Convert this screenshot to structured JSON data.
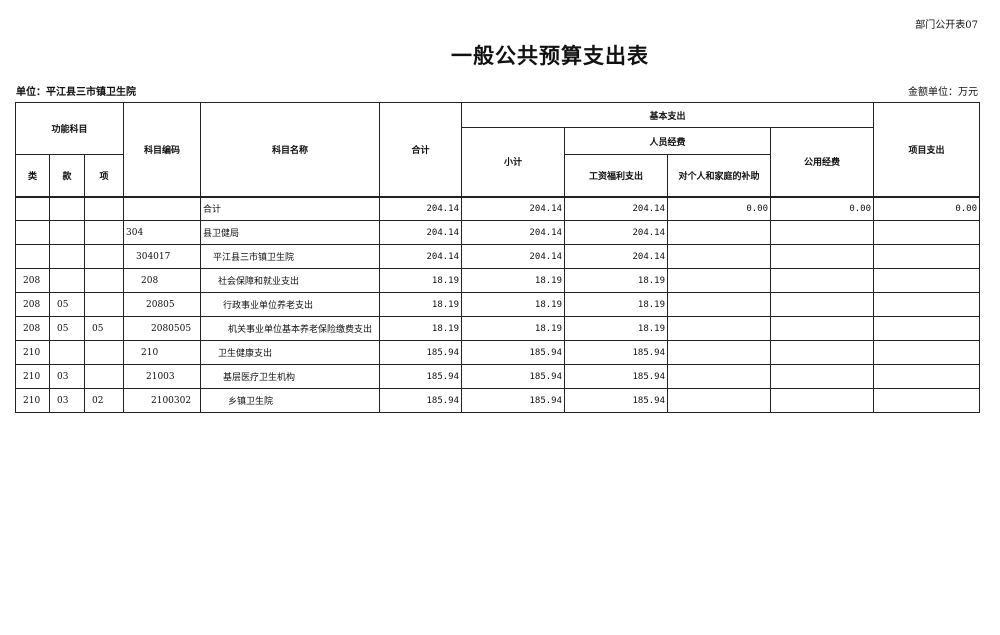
{
  "form_number": "部门公开表07",
  "title": "一般公共预算支出表",
  "unit_label": "单位：平江县三市镇卫生院",
  "money_unit": "金额单位：万元",
  "headers": {
    "func_subject": "功能科目",
    "lei": "类",
    "kuan": "款",
    "xiang": "项",
    "code": "科目编码",
    "name": "科目名称",
    "total": "合计",
    "basic": "基本支出",
    "subtotal": "小计",
    "personnel": "人员经费",
    "salary": "工资福利支出",
    "subsidy": "对个人和家庭的补助",
    "public": "公用经费",
    "project": "项目支出"
  },
  "rows": [
    {
      "lei": "",
      "kuan": "",
      "xiang": "",
      "code": "",
      "name": "合计",
      "total": "204.14",
      "subtotal": "204.14",
      "salary": "204.14",
      "subsidy": "0.00",
      "public": "0.00",
      "project": "0.00",
      "level": 0
    },
    {
      "lei": "",
      "kuan": "",
      "xiang": "",
      "code": "304",
      "name": "县卫健局",
      "total": "204.14",
      "subtotal": "204.14",
      "salary": "204.14",
      "subsidy": "",
      "public": "",
      "project": "",
      "level": 0
    },
    {
      "lei": "",
      "kuan": "",
      "xiang": "",
      "code": "304017",
      "name": "平江县三市镇卫生院",
      "total": "204.14",
      "subtotal": "204.14",
      "salary": "204.14",
      "subsidy": "",
      "public": "",
      "project": "",
      "level": 1
    },
    {
      "lei": "208",
      "kuan": "",
      "xiang": "",
      "code": "208",
      "name": "社会保障和就业支出",
      "total": "18.19",
      "subtotal": "18.19",
      "salary": "18.19",
      "subsidy": "",
      "public": "",
      "project": "",
      "level": 2
    },
    {
      "lei": "208",
      "kuan": "05",
      "xiang": "",
      "code": "20805",
      "name": "行政事业单位养老支出",
      "total": "18.19",
      "subtotal": "18.19",
      "salary": "18.19",
      "subsidy": "",
      "public": "",
      "project": "",
      "level": 3
    },
    {
      "lei": "208",
      "kuan": "05",
      "xiang": "05",
      "code": "2080505",
      "name": "机关事业单位基本养老保险缴费支出",
      "total": "18.19",
      "subtotal": "18.19",
      "salary": "18.19",
      "subsidy": "",
      "public": "",
      "project": "",
      "level": 4
    },
    {
      "lei": "210",
      "kuan": "",
      "xiang": "",
      "code": "210",
      "name": "卫生健康支出",
      "total": "185.94",
      "subtotal": "185.94",
      "salary": "185.94",
      "subsidy": "",
      "public": "",
      "project": "",
      "level": 2
    },
    {
      "lei": "210",
      "kuan": "03",
      "xiang": "",
      "code": "21003",
      "name": "基层医疗卫生机构",
      "total": "185.94",
      "subtotal": "185.94",
      "salary": "185.94",
      "subsidy": "",
      "public": "",
      "project": "",
      "level": 3
    },
    {
      "lei": "210",
      "kuan": "03",
      "xiang": "02",
      "code": "2100302",
      "name": "乡镇卫生院",
      "total": "185.94",
      "subtotal": "185.94",
      "salary": "185.94",
      "subsidy": "",
      "public": "",
      "project": "",
      "level": 4
    }
  ]
}
